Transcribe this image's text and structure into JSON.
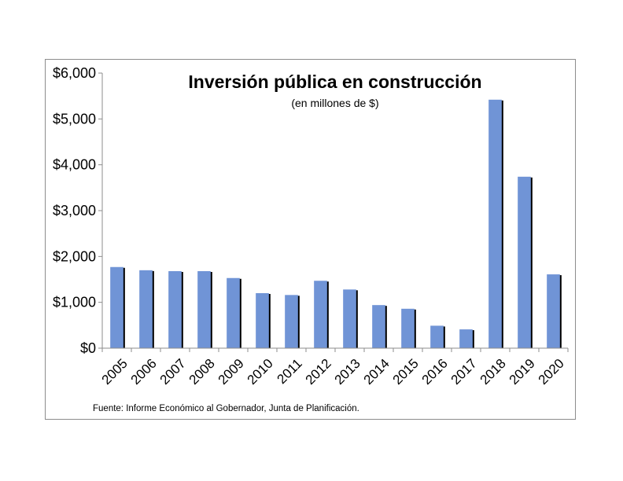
{
  "chart_data": {
    "type": "bar",
    "title": "Inversión pública en construcción",
    "subtitle": "(en millones de $)",
    "source": "Fuente: Informe Económico al Gobernador, Junta de Planificación.",
    "categories": [
      "2005",
      "2006",
      "2007",
      "2008",
      "2009",
      "2010",
      "2011",
      "2012",
      "2013",
      "2014",
      "2015",
      "2016",
      "2017",
      "2018",
      "2019",
      "2020"
    ],
    "values": [
      1770,
      1700,
      1680,
      1680,
      1530,
      1200,
      1160,
      1470,
      1280,
      940,
      860,
      490,
      410,
      5420,
      3740,
      1610
    ],
    "ylim": [
      0,
      6000
    ],
    "yticks": [
      0,
      1000,
      2000,
      3000,
      4000,
      5000,
      6000
    ],
    "ytick_labels": [
      "$0",
      "$1,000",
      "$2,000",
      "$3,000",
      "$4,000",
      "$5,000",
      "$6,000"
    ],
    "xlabel": "",
    "ylabel": "",
    "grid": false,
    "colors": {
      "bar": "#7094d6",
      "bar_shadow": "#000000",
      "axis": "#8c8c8c"
    }
  }
}
